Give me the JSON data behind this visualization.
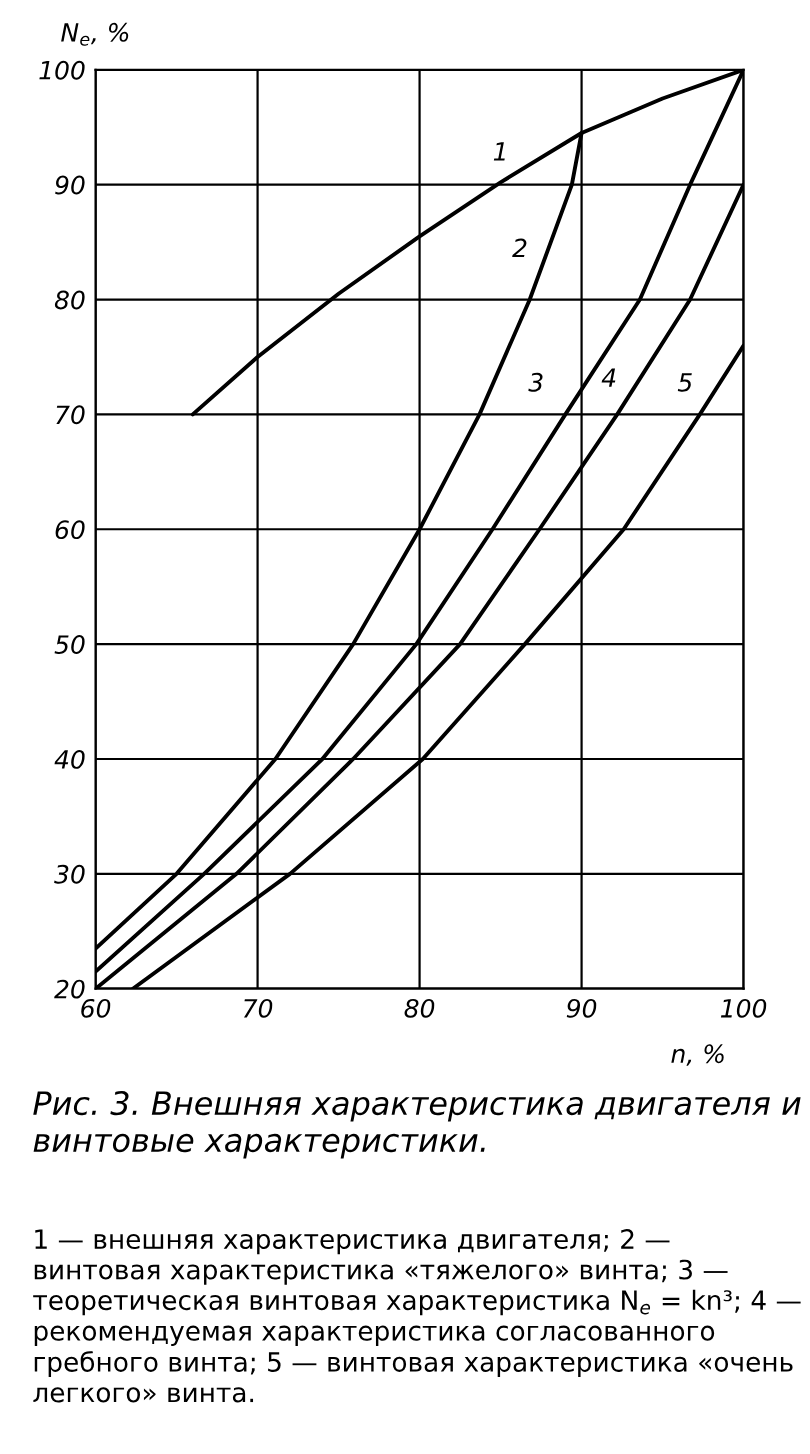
{
  "chart_data": {
    "type": "line",
    "xlabel": "n, %",
    "ylabel": "N$_{e}$, %",
    "xlim": [
      60,
      100
    ],
    "ylim": [
      20,
      100
    ],
    "xticks": [
      60,
      70,
      80,
      90,
      100
    ],
    "yticks": [
      20,
      30,
      40,
      50,
      60,
      70,
      80,
      90,
      100
    ],
    "grid": true,
    "line_style": "solid",
    "marker": "none",
    "series": [
      {
        "color": "#000000",
        "x": [
          66,
          70,
          75,
          80,
          85,
          90,
          95,
          100
        ],
        "values": [
          70,
          75,
          80.5,
          85.5,
          90.2,
          94.5,
          97.5,
          100
        ]
      },
      {
        "color": "#000000",
        "x": [
          60,
          65,
          71.1,
          75.9,
          80,
          83.7,
          86.8,
          89.4,
          90
        ],
        "values": [
          23.5,
          30,
          40,
          50,
          60,
          70,
          80,
          90,
          94.5
        ]
      },
      {
        "color": "#000000",
        "x": [
          60,
          66.7,
          74,
          79.8,
          84.5,
          89,
          93.6,
          96.7,
          100
        ],
        "values": [
          21.5,
          30,
          40,
          50,
          60,
          70,
          80,
          90,
          100
        ]
      },
      {
        "color": "#000000",
        "x": [
          60,
          68.7,
          75.9,
          82.5,
          87.4,
          92.2,
          96.7,
          100
        ],
        "values": [
          20,
          30,
          40,
          50,
          60,
          70,
          80,
          90
        ]
      },
      {
        "color": "#000000",
        "x": [
          62.3,
          72,
          80.2,
          86.5,
          92.6,
          97.3,
          100
        ],
        "values": [
          20,
          30,
          40,
          50,
          60,
          70,
          76
        ]
      }
    ],
    "annotations": [
      {
        "text": "1",
        "x": 85,
        "y": 92.7
      },
      {
        "text": "2",
        "x": 86.2,
        "y": 84.3
      },
      {
        "text": "3",
        "x": 87.2,
        "y": 72.6
      },
      {
        "text": "4",
        "x": 91.7,
        "y": 73
      },
      {
        "text": "5",
        "x": 96.4,
        "y": 72.6
      },
      "Рис. 3. Внешняя характеристика двигателя и винтовые характеристики.",
      "1 — внешняя характеристика двигателя; 2 — винтовая характеристика «тяжелого» винта; 3 — теоретическая винтовая характеристика N$_{e}$ = kn³; 4 — рекомендуемая характеристика согласованного гребного винта; 5 — винтовая характеристика «очень легкого» винта."
    ]
  }
}
